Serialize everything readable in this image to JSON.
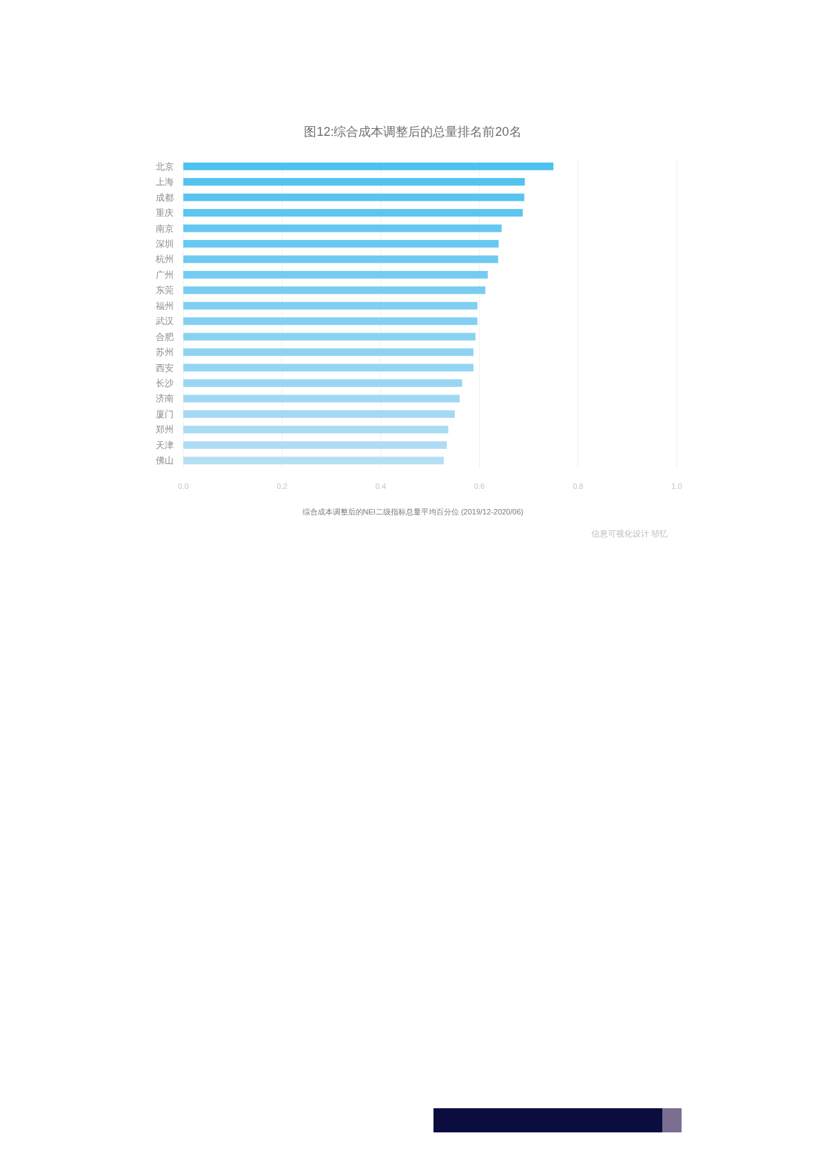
{
  "chart_data": {
    "type": "bar",
    "orientation": "horizontal",
    "title": "图12:综合成本调整后的总量排名前20名",
    "xlabel": "综合成本调整后的NEI二级指标总量平均百分位 (2019/12-2020/06)",
    "categories": [
      "北京",
      "上海",
      "成都",
      "重庆",
      "南京",
      "深圳",
      "杭州",
      "广州",
      "东莞",
      "福州",
      "武汉",
      "合肥",
      "苏州",
      "西安",
      "长沙",
      "济南",
      "厦门",
      "郑州",
      "天津",
      "佛山"
    ],
    "values": [
      0.75,
      0.692,
      0.691,
      0.688,
      0.645,
      0.639,
      0.638,
      0.617,
      0.612,
      0.596,
      0.596,
      0.592,
      0.588,
      0.588,
      0.565,
      0.56,
      0.55,
      0.537,
      0.534,
      0.528
    ],
    "colors": [
      "#4dc1ef",
      "#52c2ef",
      "#58c4f0",
      "#5dc6f0",
      "#63c7f0",
      "#68c9f0",
      "#6ecaf1",
      "#73ccf1",
      "#78cdf1",
      "#7ecff1",
      "#83d0f2",
      "#89d2f2",
      "#8ed3f2",
      "#93d5f2",
      "#99d6f3",
      "#9ed8f3",
      "#a4d9f3",
      "#a9dbf3",
      "#afdcf4",
      "#b4def4"
    ],
    "xlim": [
      0,
      1
    ],
    "xticks": [
      {
        "value": 0,
        "label": "0.0"
      },
      {
        "value": 0.2,
        "label": "0.2"
      },
      {
        "value": 0.4,
        "label": "0.4"
      },
      {
        "value": 0.6,
        "label": "0.6"
      },
      {
        "value": 0.8,
        "label": "0.8"
      },
      {
        "value": 1,
        "label": "1.0"
      }
    ],
    "grid": "x",
    "annotations": [
      "信息可视化设计 邬忆"
    ]
  }
}
